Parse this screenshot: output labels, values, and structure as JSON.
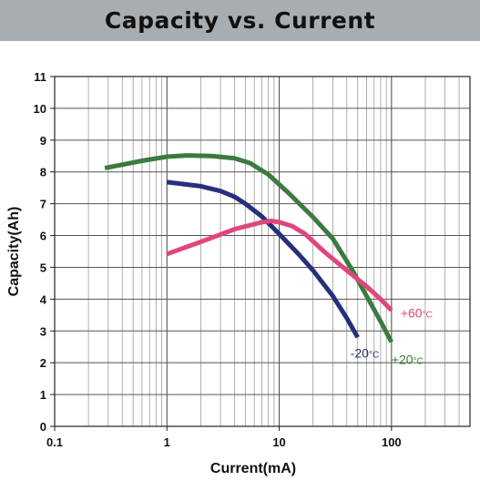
{
  "header": {
    "title": "Capacity vs. Current"
  },
  "chart_data": {
    "type": "line",
    "title": "Capacity vs. Current",
    "xlabel": "Current(mA)",
    "ylabel": "Capacity(Ah)",
    "x_scale": "log",
    "xlim": [
      0.1,
      500
    ],
    "ylim": [
      0,
      11
    ],
    "x_ticks": [
      "0.1",
      "1",
      "10",
      "100"
    ],
    "x_tick_values": [
      0.1,
      1,
      10,
      100
    ],
    "y_ticks": [
      "0",
      "1",
      "2",
      "3",
      "4",
      "5",
      "6",
      "7",
      "8",
      "9",
      "10",
      "11"
    ],
    "y_tick_values": [
      0,
      1,
      2,
      3,
      4,
      5,
      6,
      7,
      8,
      9,
      10,
      11
    ],
    "grid": true,
    "series": [
      {
        "name": "+20°C",
        "color": "#3c7a3f",
        "x": [
          0.28,
          0.6,
          1,
          1.5,
          2.5,
          4,
          5.5,
          8,
          12,
          20,
          30,
          45,
          60,
          80,
          100
        ],
        "y": [
          8.12,
          8.35,
          8.48,
          8.52,
          8.5,
          8.43,
          8.28,
          7.92,
          7.35,
          6.58,
          5.9,
          4.9,
          4.1,
          3.3,
          2.65
        ]
      },
      {
        "name": "-20°C",
        "color": "#26307a",
        "x": [
          1,
          2,
          3,
          4,
          5,
          7,
          10,
          15,
          20,
          30,
          40,
          50
        ],
        "y": [
          7.68,
          7.55,
          7.4,
          7.22,
          7.0,
          6.6,
          6.05,
          5.4,
          4.9,
          4.1,
          3.4,
          2.8
        ]
      },
      {
        "name": "+60°C",
        "color": "#e0457e",
        "x": [
          1,
          2,
          4,
          7,
          8.5,
          10,
          13,
          17,
          25,
          40,
          60,
          80,
          100
        ],
        "y": [
          5.42,
          5.8,
          6.2,
          6.42,
          6.46,
          6.42,
          6.3,
          6.05,
          5.5,
          4.9,
          4.4,
          4.0,
          3.65
        ]
      }
    ],
    "annotations": [
      {
        "text": "+60",
        "unit": "°C",
        "series": "+60°C",
        "color": "#e0457e"
      },
      {
        "text": "-20",
        "unit": "°C",
        "series": "-20°C",
        "color": "#26307a"
      },
      {
        "text": "+20",
        "unit": "°C",
        "series": "+20°C",
        "color": "#3c7a3f"
      }
    ]
  }
}
